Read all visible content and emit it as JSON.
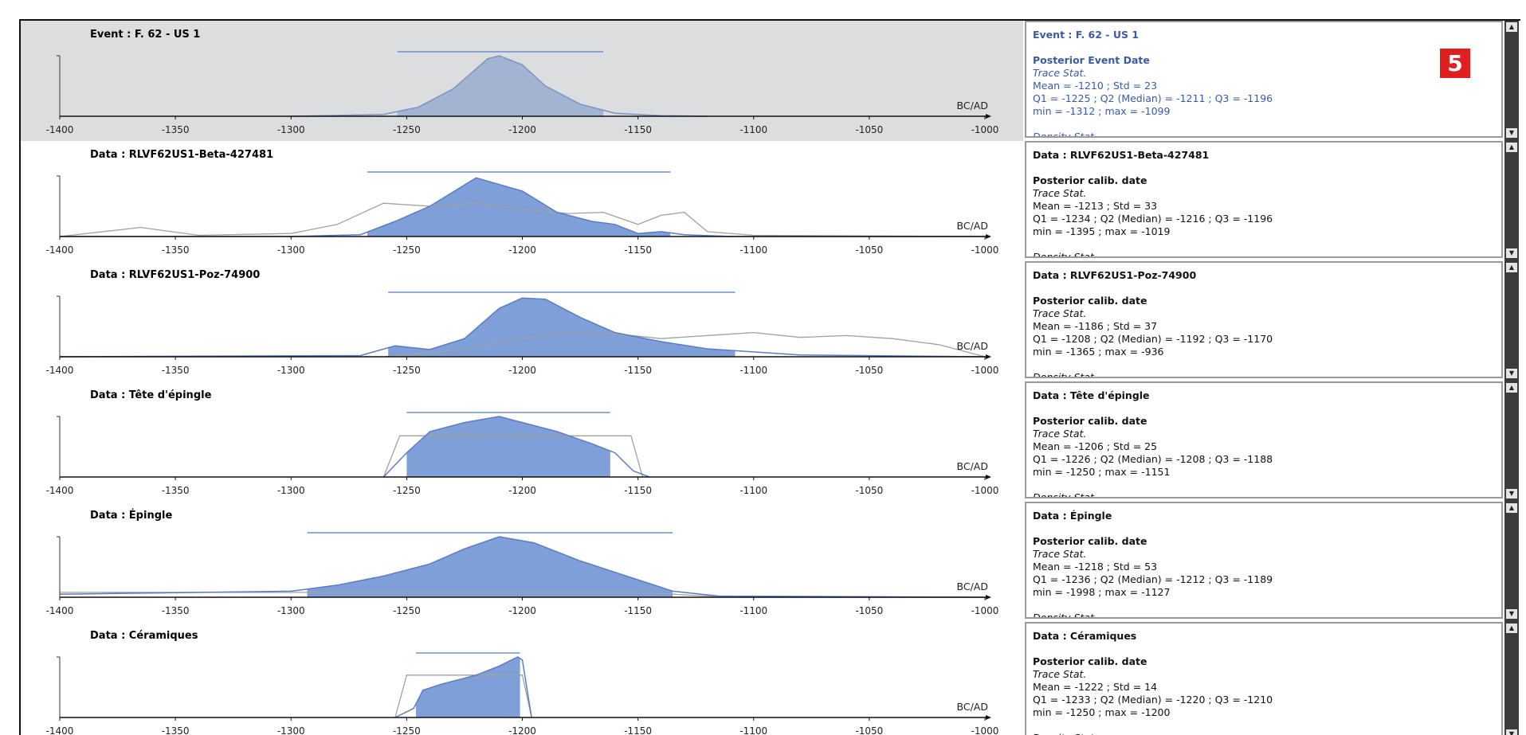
{
  "axis": {
    "xlim": [
      -1400,
      -1000
    ],
    "xticks": [
      -1400,
      -1350,
      -1300,
      -1250,
      -1200,
      -1150,
      -1100,
      -1050,
      -1000
    ],
    "unit": "BC/AD"
  },
  "badge": "5",
  "panels": [
    {
      "title": "Event : F. 62 - US 1",
      "hpd": [
        -1254,
        -1165
      ],
      "density": {
        "x": [
          -1300,
          -1260,
          -1245,
          -1230,
          -1215,
          -1210,
          -1200,
          -1190,
          -1175,
          -1160,
          -1140,
          -1120
        ],
        "y": [
          0,
          3,
          15,
          45,
          95,
          100,
          85,
          50,
          20,
          5,
          1,
          0
        ]
      },
      "info": {
        "heading": "Posterior Event Date",
        "sub": "Trace Stat.",
        "lines": [
          "Mean = -1210 ; Std = 23",
          "Q1 = -1225 ; Q2 (Median) = -1211 ; Q3 = -1196",
          "min = -1312 ; max = -1099"
        ],
        "more": "Density Stat."
      }
    },
    {
      "title": "Data : RLVF62US1-Beta-427481",
      "hpd": [
        -1267,
        -1136
      ],
      "density": {
        "x": [
          -1400,
          -1300,
          -1270,
          -1255,
          -1240,
          -1220,
          -1200,
          -1185,
          -1170,
          -1160,
          -1150,
          -1140,
          -1130,
          -1110,
          -1000
        ],
        "y": [
          0,
          0,
          3,
          25,
          50,
          97,
          75,
          40,
          25,
          20,
          5,
          8,
          3,
          0,
          0
        ]
      },
      "likelihood": {
        "x": [
          -1400,
          -1365,
          -1340,
          -1300,
          -1280,
          -1260,
          -1240,
          -1220,
          -1200,
          -1180,
          -1165,
          -1150,
          -1140,
          -1130,
          -1120,
          -1100,
          -1000
        ],
        "y": [
          0,
          15,
          2,
          5,
          20,
          55,
          50,
          55,
          45,
          38,
          40,
          20,
          35,
          40,
          8,
          2,
          0
        ]
      },
      "info": {
        "heading": "Posterior calib. date",
        "sub": "Trace Stat.",
        "lines": [
          "Mean = -1213 ; Std = 33",
          "Q1 = -1234 ; Q2 (Median) = -1216 ; Q3 = -1196",
          "min = -1395 ; max = -1019"
        ],
        "more": "Density Stat."
      }
    },
    {
      "title": "Data : RLVF62US1-Poz-74900",
      "hpd": [
        -1258,
        -1108
      ],
      "density": {
        "x": [
          -1400,
          -1270,
          -1255,
          -1240,
          -1225,
          -1210,
          -1200,
          -1190,
          -1175,
          -1160,
          -1140,
          -1120,
          -1108,
          -1080,
          -1000
        ],
        "y": [
          0,
          2,
          18,
          12,
          30,
          80,
          97,
          95,
          65,
          40,
          25,
          13,
          10,
          3,
          0
        ]
      },
      "likelihood": {
        "x": [
          -1400,
          -1260,
          -1230,
          -1200,
          -1180,
          -1160,
          -1140,
          -1120,
          -1100,
          -1080,
          -1060,
          -1040,
          -1020,
          -1000
        ],
        "y": [
          0,
          0,
          10,
          30,
          40,
          38,
          30,
          35,
          40,
          32,
          35,
          30,
          20,
          0
        ]
      },
      "info": {
        "heading": "Posterior calib. date",
        "sub": "Trace Stat.",
        "lines": [
          "Mean = -1186 ; Std = 37",
          "Q1 = -1208 ; Q2 (Median) = -1192 ; Q3 = -1170",
          "min = -1365 ; max = -936"
        ],
        "more": "Density Stat."
      }
    },
    {
      "title": "Data : Tête d'épingle",
      "hpd": [
        -1250,
        -1162
      ],
      "density": {
        "x": [
          -1260,
          -1250,
          -1240,
          -1225,
          -1210,
          -1200,
          -1185,
          -1170,
          -1160,
          -1152,
          -1145
        ],
        "y": [
          0,
          40,
          75,
          90,
          100,
          90,
          75,
          55,
          40,
          10,
          0
        ]
      },
      "likelihood": {
        "x": [
          -1260,
          -1253,
          -1153,
          -1148
        ],
        "y": [
          0,
          68,
          68,
          0
        ]
      },
      "info": {
        "heading": "Posterior calib. date",
        "sub": "Trace Stat.",
        "lines": [
          "Mean = -1206 ; Std = 25",
          "Q1 = -1226 ; Q2 (Median) = -1208 ; Q3 = -1188",
          "min = -1250 ; max = -1151"
        ],
        "more": "Density Stat."
      }
    },
    {
      "title": "Data : Épingle",
      "hpd": [
        -1293,
        -1135
      ],
      "density": {
        "x": [
          -1400,
          -1300,
          -1280,
          -1260,
          -1240,
          -1225,
          -1210,
          -1195,
          -1175,
          -1155,
          -1135,
          -1115,
          -1000
        ],
        "y": [
          5,
          10,
          20,
          35,
          55,
          80,
          100,
          90,
          60,
          35,
          10,
          2,
          0
        ]
      },
      "likelihood": {
        "x": [
          -1400,
          -1150,
          -1110,
          -1000
        ],
        "y": [
          8,
          8,
          0,
          0
        ]
      },
      "info": {
        "heading": "Posterior calib. date",
        "sub": "Trace Stat.",
        "lines": [
          "Mean = -1218 ; Std = 53",
          "Q1 = -1236 ; Q2 (Median) = -1212 ; Q3 = -1189",
          "min = -1998 ; max = -1127"
        ],
        "more": "Density Stat."
      }
    },
    {
      "title": "Data : Céramiques",
      "hpd": [
        -1246,
        -1201
      ],
      "density": {
        "x": [
          -1255,
          -1247,
          -1243,
          -1235,
          -1220,
          -1210,
          -1202,
          -1200,
          -1196
        ],
        "y": [
          0,
          15,
          45,
          55,
          70,
          85,
          100,
          95,
          0
        ]
      },
      "likelihood": {
        "x": [
          -1255,
          -1250,
          -1200,
          -1196
        ],
        "y": [
          0,
          70,
          70,
          0
        ]
      },
      "info": {
        "heading": "Posterior calib. date",
        "sub": "Trace Stat.",
        "lines": [
          "Mean = -1222 ; Std = 14",
          "Q1 = -1233 ; Q2 (Median) = -1220 ; Q3 = -1210",
          "min = -1250 ; max = -1200"
        ],
        "more": "Density Stat."
      }
    }
  ]
}
